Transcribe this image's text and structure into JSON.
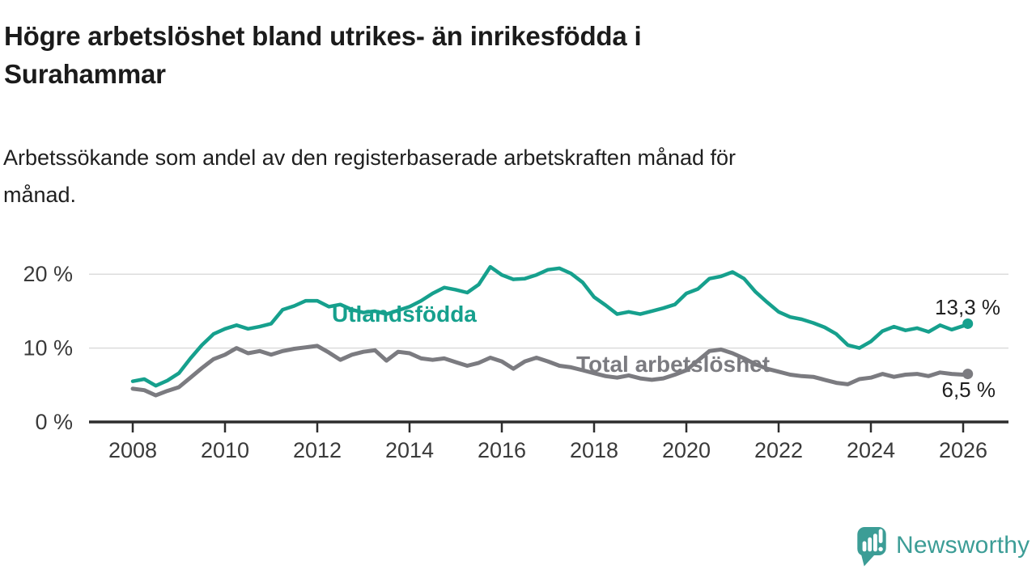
{
  "header": {
    "title_lines": [
      "Högre arbetslöshet bland utrikes- än inrikesfödda i",
      "Surahammar"
    ],
    "subtitle_lines": [
      "Arbetssökande som andel av den registerbaserade arbetskraften månad för",
      "månad."
    ]
  },
  "chart_data": {
    "type": "line",
    "title": "Högre arbetslöshet bland utrikes- än inrikesfödda i Surahammar",
    "subtitle": "Arbetssökande som andel av den registerbaserade arbetskraften månad för månad.",
    "x_unit": "decimal_year",
    "grid": "horizontal",
    "legend_position": "inline-labels",
    "xlim": [
      2007.05,
      2027.0
    ],
    "ylim": [
      0,
      22.5
    ],
    "x_ticks": [
      {
        "label": "2008",
        "year": 2008
      },
      {
        "label": "2010",
        "year": 2010
      },
      {
        "label": "2012",
        "year": 2012
      },
      {
        "label": "2014",
        "year": 2014
      },
      {
        "label": "2016",
        "year": 2016
      },
      {
        "label": "2018",
        "year": 2018
      },
      {
        "label": "2020",
        "year": 2020
      },
      {
        "label": "2022",
        "year": 2022
      },
      {
        "label": "2024",
        "year": 2024
      },
      {
        "label": "2026",
        "year": 2026
      }
    ],
    "y_ticks": [
      {
        "label": "0 %",
        "value": 0
      },
      {
        "label": "10 %",
        "value": 10
      },
      {
        "label": "20 %",
        "value": 20
      }
    ],
    "x": [
      2008.0,
      2008.25,
      2008.5,
      2008.75,
      2009.0,
      2009.25,
      2009.5,
      2009.75,
      2010.0,
      2010.25,
      2010.5,
      2010.75,
      2011.0,
      2011.25,
      2011.5,
      2011.75,
      2012.0,
      2012.25,
      2012.5,
      2012.75,
      2013.0,
      2013.25,
      2013.5,
      2013.75,
      2014.0,
      2014.25,
      2014.5,
      2014.75,
      2015.0,
      2015.25,
      2015.5,
      2015.75,
      2016.0,
      2016.25,
      2016.5,
      2016.75,
      2017.0,
      2017.25,
      2017.5,
      2017.75,
      2018.0,
      2018.25,
      2018.5,
      2018.75,
      2019.0,
      2019.25,
      2019.5,
      2019.75,
      2020.0,
      2020.25,
      2020.5,
      2020.75,
      2021.0,
      2021.25,
      2021.5,
      2021.75,
      2022.0,
      2022.25,
      2022.5,
      2022.75,
      2023.0,
      2023.25,
      2023.5,
      2023.75,
      2024.0,
      2024.25,
      2024.5,
      2024.75,
      2025.0,
      2025.25,
      2025.5,
      2025.75,
      2026.0,
      2026.1
    ],
    "series": [
      {
        "name": "Utlandsfödda",
        "color": "#16A08D",
        "end_label": "13,3 %",
        "values": [
          5.5,
          5.8,
          4.9,
          5.6,
          6.6,
          8.6,
          10.4,
          11.9,
          12.6,
          13.1,
          12.6,
          12.9,
          13.3,
          15.2,
          15.7,
          16.4,
          16.4,
          15.6,
          15.9,
          15.2,
          14.8,
          15.0,
          14.6,
          15.1,
          15.6,
          16.4,
          17.4,
          18.2,
          17.9,
          17.5,
          18.6,
          21.0,
          19.9,
          19.3,
          19.4,
          19.9,
          20.6,
          20.8,
          20.1,
          18.9,
          16.9,
          15.8,
          14.6,
          14.9,
          14.6,
          15.0,
          15.4,
          15.9,
          17.4,
          18.0,
          19.4,
          19.7,
          20.3,
          19.4,
          17.6,
          16.2,
          14.9,
          14.2,
          13.9,
          13.4,
          12.8,
          11.9,
          10.4,
          10.0,
          10.9,
          12.3,
          12.9,
          12.4,
          12.7,
          12.2,
          13.1,
          12.5,
          13.0,
          13.3
        ]
      },
      {
        "name": "Total arbetslöshet",
        "color": "#7B7B80",
        "end_label": "6,5 %",
        "values": [
          4.5,
          4.3,
          3.6,
          4.2,
          4.7,
          6.0,
          7.3,
          8.5,
          9.1,
          10.0,
          9.3,
          9.6,
          9.1,
          9.6,
          9.9,
          10.1,
          10.3,
          9.4,
          8.4,
          9.1,
          9.5,
          9.7,
          8.3,
          9.5,
          9.3,
          8.6,
          8.4,
          8.6,
          8.1,
          7.6,
          8.0,
          8.7,
          8.2,
          7.2,
          8.2,
          8.7,
          8.2,
          7.6,
          7.4,
          7.0,
          6.6,
          6.2,
          6.0,
          6.3,
          5.9,
          5.7,
          5.9,
          6.4,
          7.0,
          8.3,
          9.6,
          9.8,
          9.3,
          8.6,
          7.8,
          7.2,
          6.8,
          6.4,
          6.2,
          6.1,
          5.7,
          5.3,
          5.1,
          5.8,
          6.0,
          6.5,
          6.1,
          6.4,
          6.5,
          6.2,
          6.7,
          6.5,
          6.4,
          6.5
        ]
      }
    ],
    "colors": {
      "grid": "#dcdcdc",
      "axis": "#2d2d2d",
      "tick_text": "#3a3a3a",
      "end_label_text": "#1f1f1f"
    }
  },
  "footer": {
    "brand": "Newsworthy",
    "brand_color": "#3C9D96"
  }
}
